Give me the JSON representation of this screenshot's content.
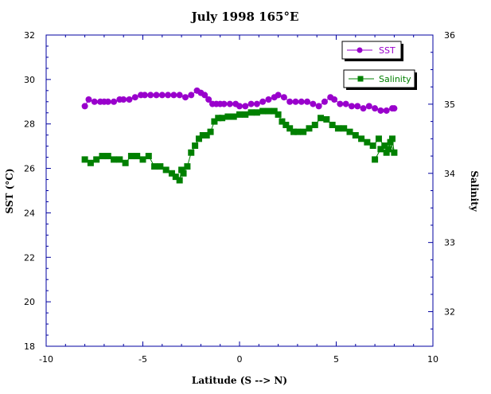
{
  "colors": {
    "axis": "#0000a0",
    "sst": "#9900cc",
    "salinity": "#008000",
    "text": "#000000"
  },
  "chart_data": {
    "type": "scatter",
    "title": "July 1998 165°E",
    "xlabel": "Latitude (S --> N)",
    "ylabel_left": "SST (°C)",
    "ylabel_right": "Salinity",
    "xlim": [
      -10,
      10
    ],
    "ylim_left": [
      18,
      32
    ],
    "ylim_right": [
      31.5,
      36
    ],
    "x_ticks": [
      "-10",
      "-5",
      "0",
      "5",
      "10"
    ],
    "y_left_ticks": [
      "18",
      "20",
      "22",
      "24",
      "26",
      "28",
      "30",
      "32"
    ],
    "y_right_ticks": [
      "32",
      "33",
      "34",
      "35",
      "36"
    ],
    "legend_placement": "top-right",
    "series": [
      {
        "name": "SST",
        "axis": "left",
        "marker": "circle",
        "x": [
          -8.0,
          -7.8,
          -7.5,
          -7.2,
          -7.0,
          -6.8,
          -6.5,
          -6.2,
          -6.0,
          -5.7,
          -5.4,
          -5.1,
          -4.9,
          -4.6,
          -4.3,
          -4.0,
          -3.7,
          -3.4,
          -3.1,
          -2.8,
          -2.5,
          -2.2,
          -2.0,
          -1.8,
          -1.6,
          -1.4,
          -1.2,
          -1.0,
          -0.8,
          -0.5,
          -0.2,
          0.0,
          0.3,
          0.6,
          0.9,
          1.2,
          1.5,
          1.8,
          2.0,
          2.3,
          2.6,
          2.9,
          3.2,
          3.5,
          3.8,
          4.1,
          4.4,
          4.7,
          4.9,
          5.2,
          5.5,
          5.8,
          6.1,
          6.4,
          6.7,
          7.0,
          7.3,
          7.6,
          7.9,
          8.0
        ],
        "y": [
          28.8,
          29.1,
          29.0,
          29.0,
          29.0,
          29.0,
          29.0,
          29.1,
          29.1,
          29.1,
          29.2,
          29.3,
          29.3,
          29.3,
          29.3,
          29.3,
          29.3,
          29.3,
          29.3,
          29.2,
          29.3,
          29.5,
          29.4,
          29.3,
          29.1,
          28.9,
          28.9,
          28.9,
          28.9,
          28.9,
          28.9,
          28.8,
          28.8,
          28.9,
          28.9,
          29.0,
          29.1,
          29.2,
          29.3,
          29.2,
          29.0,
          29.0,
          29.0,
          29.0,
          28.9,
          28.8,
          29.0,
          29.2,
          29.1,
          28.9,
          28.9,
          28.8,
          28.8,
          28.7,
          28.8,
          28.7,
          28.6,
          28.6,
          28.7,
          28.7
        ]
      },
      {
        "name": "Salinity",
        "axis": "right",
        "marker": "square",
        "x": [
          -8.0,
          -7.7,
          -7.4,
          -7.1,
          -6.8,
          -6.5,
          -6.2,
          -5.9,
          -5.6,
          -5.3,
          -5.0,
          -4.7,
          -4.4,
          -4.1,
          -3.8,
          -3.5,
          -3.3,
          -3.1,
          -3.0,
          -2.9,
          -2.7,
          -2.5,
          -2.3,
          -2.1,
          -1.9,
          -1.7,
          -1.5,
          -1.3,
          -1.1,
          -0.9,
          -0.6,
          -0.3,
          0.0,
          0.3,
          0.6,
          0.9,
          1.2,
          1.5,
          1.8,
          2.0,
          2.2,
          2.4,
          2.6,
          2.8,
          3.0,
          3.3,
          3.6,
          3.9,
          4.2,
          4.5,
          4.8,
          5.1,
          5.4,
          5.7,
          6.0,
          6.3,
          6.6,
          6.9,
          7.2,
          7.5,
          7.7,
          7.9,
          8.0,
          7.8,
          7.6,
          7.3,
          7.0
        ],
        "y": [
          34.2,
          34.15,
          34.2,
          34.25,
          34.25,
          34.2,
          34.2,
          34.15,
          34.25,
          34.25,
          34.2,
          34.25,
          34.1,
          34.1,
          34.05,
          34.0,
          33.95,
          33.9,
          34.05,
          34.0,
          34.1,
          34.3,
          34.4,
          34.5,
          34.55,
          34.55,
          34.6,
          34.75,
          34.8,
          34.8,
          34.82,
          34.82,
          34.85,
          34.85,
          34.88,
          34.88,
          34.9,
          34.9,
          34.9,
          34.85,
          34.75,
          34.7,
          34.65,
          34.6,
          34.6,
          34.6,
          34.65,
          34.7,
          34.8,
          34.78,
          34.7,
          34.65,
          34.65,
          34.6,
          34.55,
          34.5,
          34.45,
          34.4,
          34.5,
          34.4,
          34.35,
          34.5,
          34.3,
          34.45,
          34.3,
          34.35,
          34.2
        ]
      }
    ]
  }
}
